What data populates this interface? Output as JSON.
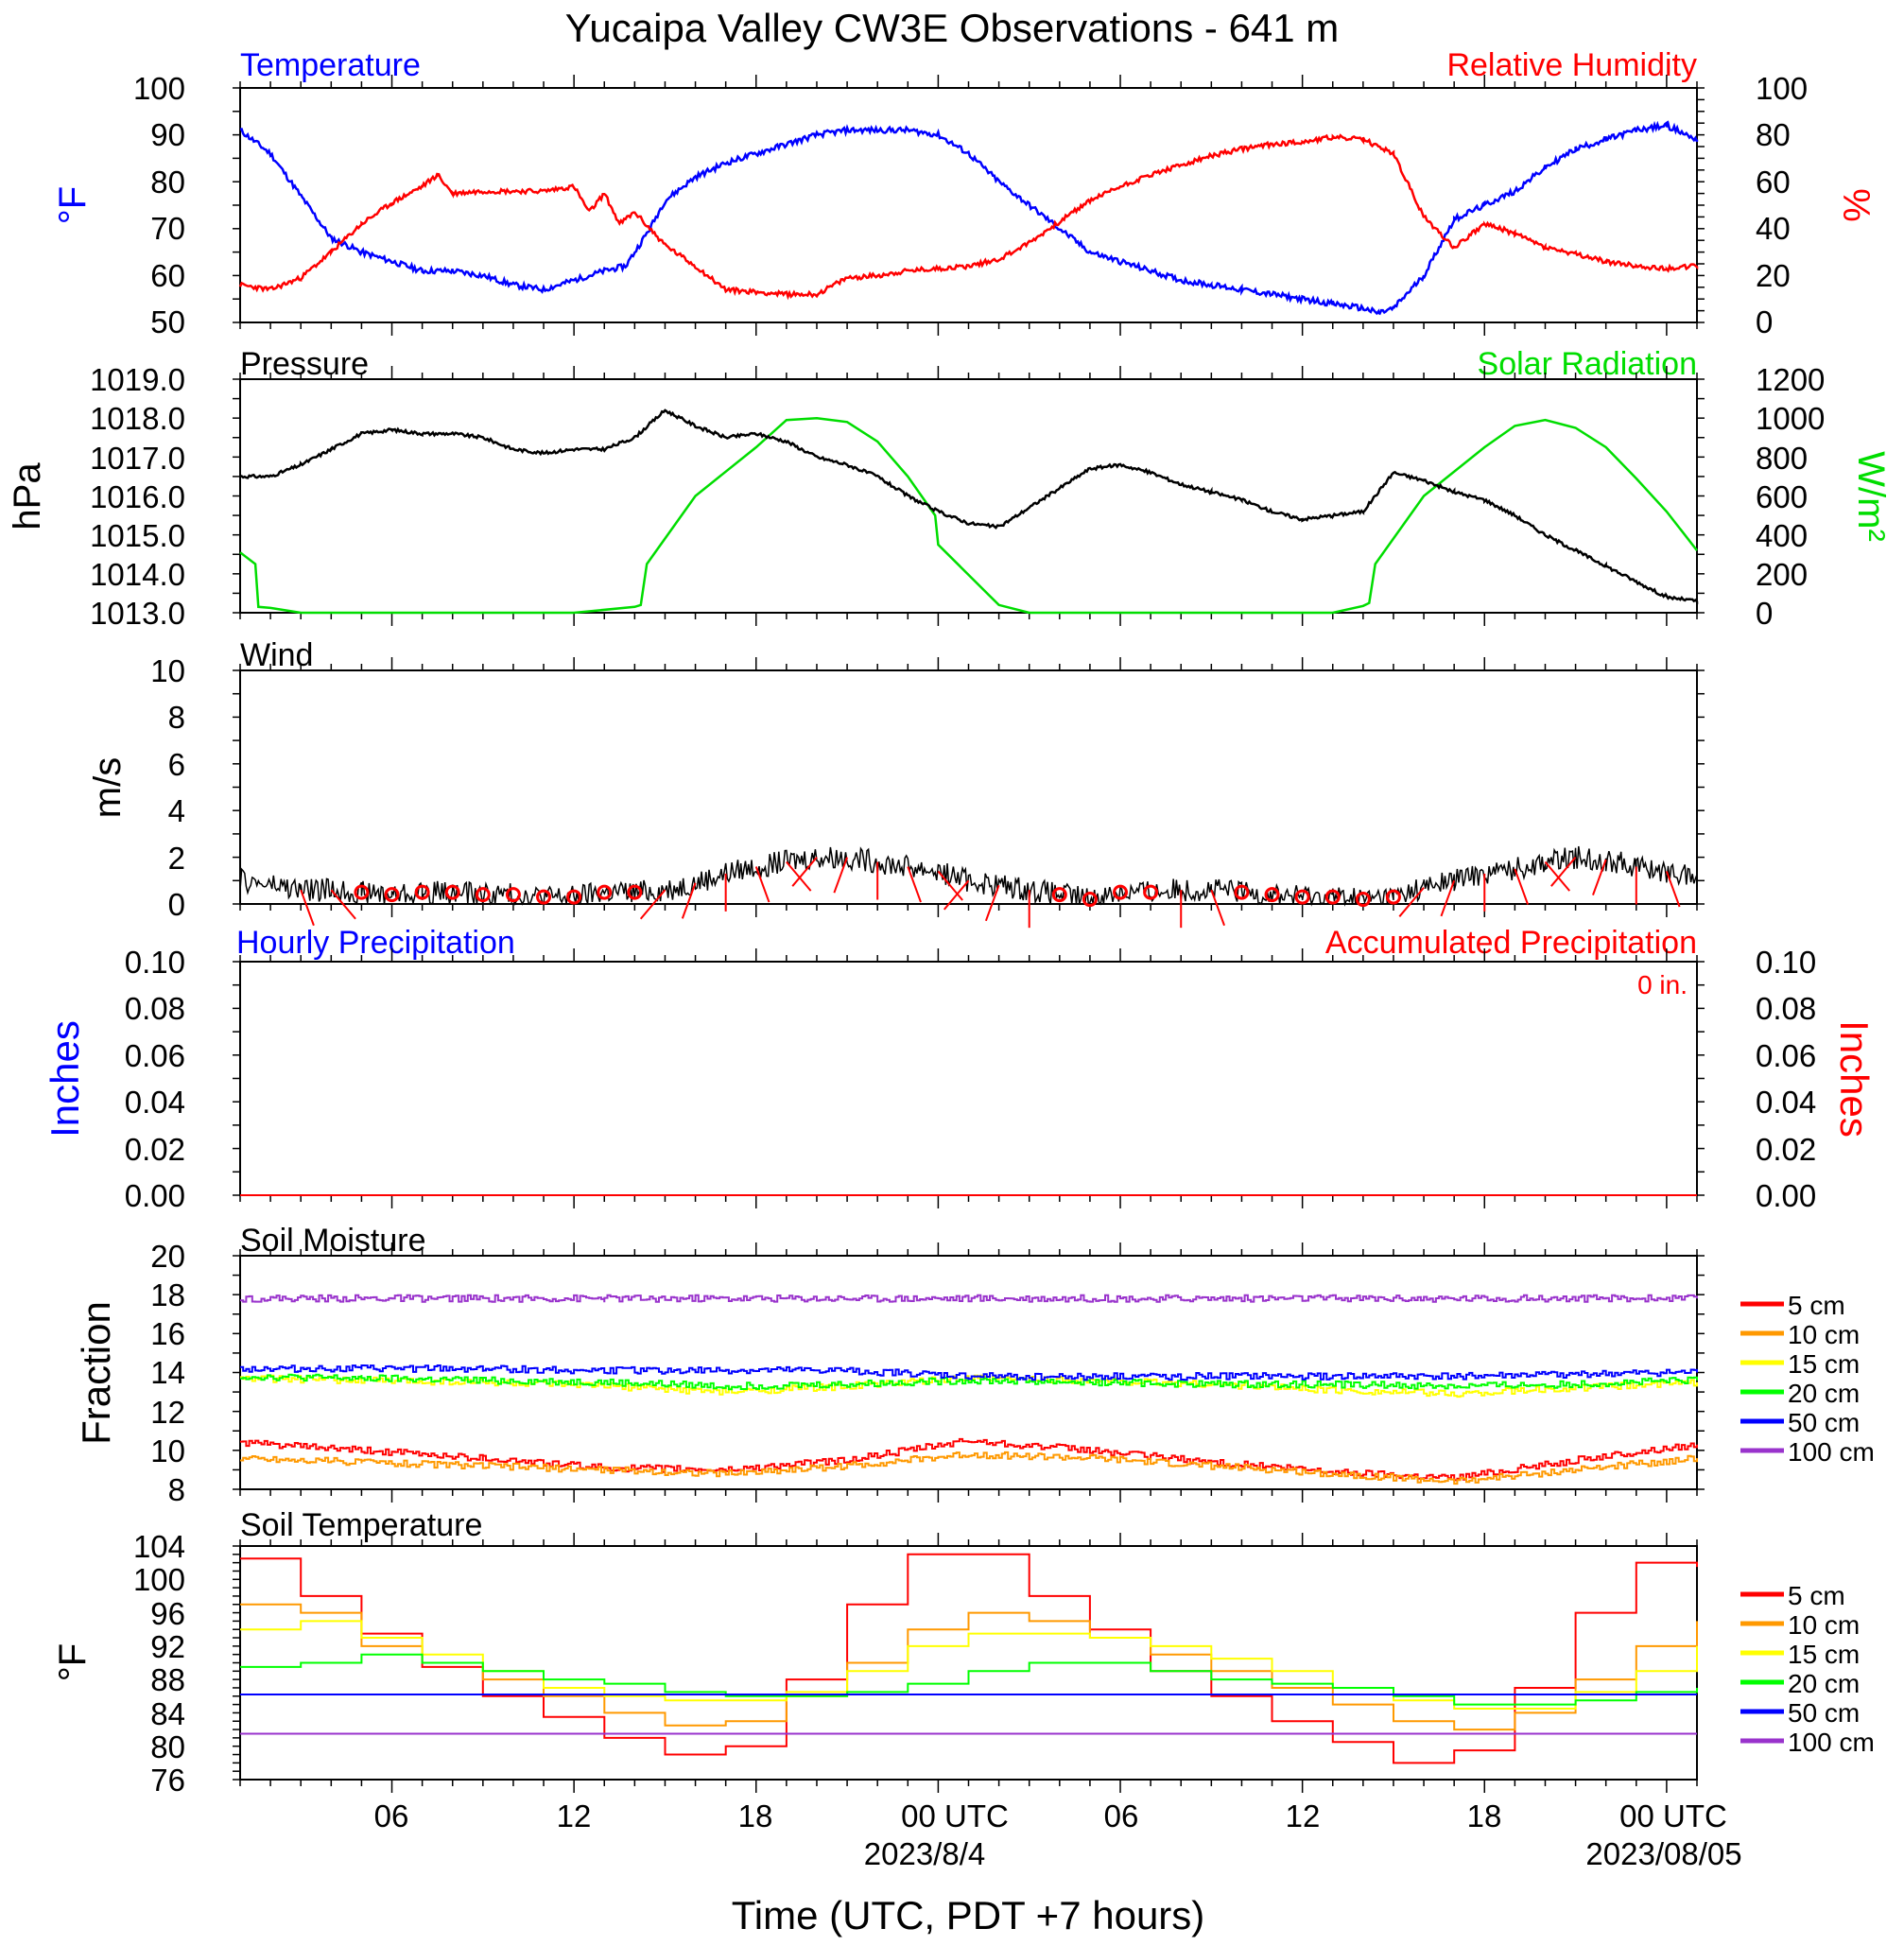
{
  "title": "Yucaipa Valley CW3E Observations - 641 m",
  "colors": {
    "temperature": "#0000ff",
    "humidity": "#ff0000",
    "pressure": "#000000",
    "solar": "#00dd00",
    "wind_barb": "#ff0000",
    "soil": {
      "5 cm": "#ff0000",
      "10 cm": "#ff9900",
      "15 cm": "#ffff00",
      "20 cm": "#00ff00",
      "50 cm": "#0000ff",
      "100 cm": "#9933cc"
    }
  },
  "time_axis": {
    "tick_labels": [
      "06",
      "12",
      "18",
      "00 UTC",
      "06",
      "12",
      "18",
      "00 UTC"
    ],
    "date_labels": [
      "2023/8/4",
      "2023/08/05"
    ],
    "xlabel": "Time (UTC, PDT +7 hours)",
    "range_hours": [
      1,
      49
    ]
  },
  "panels": {
    "temp_rh": {
      "left_title": "Temperature",
      "right_title": "Relative Humidity",
      "left_unit": "°F",
      "right_unit": "%",
      "left_ticks": [
        "100",
        "90",
        "80",
        "70",
        "60",
        "50"
      ],
      "right_ticks": [
        "100",
        "80",
        "60",
        "40",
        "20",
        "0"
      ]
    },
    "pressure_solar": {
      "left_title": "Pressure",
      "right_title": "Solar Radiation",
      "left_unit": "hPa",
      "right_unit": "W/m²",
      "left_ticks": [
        "1019.0",
        "1018.0",
        "1017.0",
        "1016.0",
        "1015.0",
        "1014.0",
        "1013.0"
      ],
      "right_ticks": [
        "1200",
        "1000",
        "800",
        "600",
        "400",
        "200",
        "0"
      ]
    },
    "wind": {
      "left_title": "Wind",
      "left_unit": "m/s",
      "left_ticks": [
        "10",
        "8",
        "6",
        "4",
        "2",
        "0"
      ]
    },
    "precip": {
      "left_title": "Hourly Precipitation",
      "right_title": "Accumulated Precipitation",
      "accum_total": "0 in.",
      "left_unit": "Inches",
      "right_unit": "Inches",
      "left_ticks": [
        "0.10",
        "0.08",
        "0.06",
        "0.04",
        "0.02",
        "0.00"
      ],
      "right_ticks": [
        "0.10",
        "0.08",
        "0.06",
        "0.04",
        "0.02",
        "0.00"
      ]
    },
    "soil_moisture": {
      "left_title": "Soil Moisture",
      "left_unit": "Fraction",
      "left_ticks": [
        "20",
        "18",
        "16",
        "14",
        "12",
        "10",
        "8"
      ],
      "legend": [
        "5 cm",
        "10 cm",
        "15 cm",
        "20 cm",
        "50 cm",
        "100 cm"
      ]
    },
    "soil_temp": {
      "left_title": "Soil Temperature",
      "left_unit": "°F",
      "left_ticks": [
        "104",
        "100",
        "96",
        "92",
        "88",
        "84",
        "80",
        "76"
      ],
      "legend": [
        "5 cm",
        "10 cm",
        "15 cm",
        "20 cm",
        "50 cm",
        "100 cm"
      ]
    }
  },
  "chart_data": [
    {
      "type": "line",
      "title": "Temperature",
      "ylabel": "°F",
      "ylim": [
        50,
        100
      ],
      "x_hours": [
        1,
        2,
        3,
        4,
        5,
        6,
        7,
        8,
        9,
        10,
        11,
        12,
        13,
        13.7,
        14.5,
        15,
        16,
        17,
        18,
        19,
        20,
        21,
        22,
        23,
        24,
        25,
        26,
        27,
        28,
        29,
        30,
        31,
        32,
        33,
        34,
        35,
        36,
        37,
        38,
        38.5,
        39,
        40,
        41,
        42,
        43,
        44,
        45,
        46,
        47,
        48,
        49
      ],
      "series": [
        {
          "name": "Temperature",
          "values": [
            91,
            86,
            77,
            68,
            65,
            63,
            61,
            61,
            60,
            58,
            57,
            59,
            61,
            62,
            70,
            76,
            81,
            84,
            86,
            88,
            90,
            91,
            91,
            91,
            90,
            86,
            80,
            75,
            70,
            65,
            63,
            61,
            59,
            58,
            57,
            56,
            55,
            54,
            53,
            52,
            53,
            60,
            72,
            75,
            78,
            83,
            87,
            89,
            91,
            92,
            89
          ]
        }
      ]
    },
    {
      "type": "line",
      "title": "Relative Humidity",
      "ylabel": "%",
      "ylim": [
        0,
        100
      ],
      "x_hours": [
        1,
        2,
        3,
        4,
        5,
        6,
        7,
        7.5,
        8,
        9,
        10,
        11,
        12,
        12.5,
        13,
        13.5,
        14,
        15,
        16,
        17,
        18,
        19,
        20,
        21,
        22,
        23,
        24,
        25,
        26,
        27,
        28,
        29,
        30,
        31,
        32,
        33,
        34,
        35,
        36,
        37,
        38,
        39,
        40,
        41,
        42,
        43,
        44,
        45,
        46,
        47,
        48,
        49
      ],
      "series": [
        {
          "name": "Relative Humidity",
          "values": [
            16,
            14,
            19,
            30,
            42,
            51,
            58,
            63,
            55,
            56,
            56,
            56,
            58,
            47,
            55,
            42,
            47,
            33,
            24,
            14,
            13,
            12,
            12,
            19,
            20,
            22,
            23,
            24,
            27,
            34,
            43,
            52,
            58,
            63,
            67,
            71,
            74,
            76,
            77,
            79,
            78,
            72,
            45,
            32,
            42,
            38,
            32,
            29,
            26,
            24,
            23,
            24
          ]
        }
      ]
    },
    {
      "type": "line",
      "title": "Pressure",
      "ylabel": "hPa",
      "ylim": [
        1013,
        1019
      ],
      "x_hours": [
        1,
        2,
        3,
        4,
        5,
        6,
        7,
        8,
        9,
        10,
        11,
        12,
        13,
        14,
        15,
        16,
        17,
        18,
        19,
        20,
        21,
        22,
        23,
        24,
        25,
        26,
        27,
        28,
        29,
        30,
        31,
        32,
        33,
        34,
        35,
        36,
        37,
        38,
        39,
        40,
        41,
        42,
        43,
        44,
        45,
        46,
        47,
        48,
        49
      ],
      "series": [
        {
          "name": "Pressure",
          "values": [
            1016.5,
            1016.5,
            1016.8,
            1017.2,
            1017.6,
            1017.7,
            1017.6,
            1017.6,
            1017.5,
            1017.2,
            1017.1,
            1017.2,
            1017.2,
            1017.5,
            1018.2,
            1017.8,
            1017.5,
            1017.6,
            1017.4,
            1017.0,
            1016.8,
            1016.5,
            1016.0,
            1015.6,
            1015.3,
            1015.2,
            1015.7,
            1016.2,
            1016.7,
            1016.8,
            1016.6,
            1016.3,
            1016.1,
            1015.9,
            1015.6,
            1015.4,
            1015.5,
            1015.6,
            1016.6,
            1016.4,
            1016.1,
            1015.9,
            1015.5,
            1015.0,
            1014.6,
            1014.2,
            1013.8,
            1013.4,
            1013.3
          ]
        }
      ]
    },
    {
      "type": "line",
      "title": "Solar Radiation",
      "ylabel": "W/m²",
      "ylim": [
        0,
        1200
      ],
      "x_hours": [
        1,
        1.5,
        1.6,
        2,
        3,
        12,
        14,
        14.2,
        14.4,
        16,
        18,
        19,
        20,
        21,
        22,
        23,
        23.9,
        24,
        26,
        27,
        37,
        38,
        38.2,
        38.4,
        40,
        42,
        43,
        44,
        45,
        46,
        47,
        48,
        49
      ],
      "series": [
        {
          "name": "Solar Radiation",
          "values": [
            310,
            250,
            30,
            25,
            0,
            0,
            30,
            40,
            250,
            600,
            850,
            990,
            1000,
            980,
            880,
            700,
            500,
            350,
            40,
            0,
            0,
            35,
            50,
            250,
            600,
            850,
            960,
            990,
            950,
            850,
            690,
            520,
            320
          ]
        }
      ]
    },
    {
      "type": "line",
      "title": "Wind",
      "ylabel": "m/s",
      "ylim": [
        0,
        10
      ],
      "x_hours": [
        1,
        2,
        3,
        4,
        5,
        6,
        7,
        8,
        9,
        10,
        11,
        12,
        13,
        14,
        15,
        16,
        17,
        18,
        19,
        20,
        21,
        22,
        23,
        24,
        25,
        26,
        27,
        28,
        29,
        30,
        31,
        32,
        33,
        34,
        35,
        36,
        37,
        38,
        39,
        40,
        41,
        42,
        43,
        44,
        45,
        46,
        47,
        48,
        49
      ],
      "series": [
        {
          "name": "Wind speed",
          "values": [
            1.0,
            0.8,
            0.6,
            0.6,
            0.5,
            0.4,
            0.5,
            0.5,
            0.4,
            0.4,
            0.3,
            0.3,
            0.5,
            0.5,
            0.6,
            0.9,
            1.3,
            1.6,
            1.8,
            2.0,
            2.0,
            1.8,
            1.6,
            1.4,
            1.0,
            0.8,
            0.6,
            0.4,
            0.2,
            0.5,
            0.5,
            0.6,
            0.6,
            0.5,
            0.4,
            0.3,
            0.3,
            0.2,
            0.3,
            0.7,
            1.0,
            1.3,
            1.5,
            1.8,
            2.0,
            1.9,
            1.6,
            1.4,
            1.1
          ]
        }
      ]
    },
    {
      "type": "line",
      "title": "Hourly Precipitation",
      "ylabel": "Inches",
      "ylim": [
        0,
        0.1
      ],
      "x_hours": [
        1,
        49
      ],
      "series": [
        {
          "name": "Hourly Precipitation",
          "values": [
            0,
            0
          ]
        },
        {
          "name": "Accumulated Precipitation",
          "values": [
            0,
            0
          ]
        }
      ]
    },
    {
      "type": "line",
      "title": "Soil Moisture",
      "ylabel": "Fraction",
      "ylim": [
        8,
        20
      ],
      "x_hours": [
        1,
        5,
        9,
        13,
        17,
        21,
        25,
        29,
        33,
        37,
        41,
        45,
        49
      ],
      "series": [
        {
          "name": "5 cm",
          "values": [
            10.4,
            10.0,
            9.6,
            9.1,
            9.0,
            9.5,
            10.5,
            10.0,
            9.4,
            8.9,
            8.6,
            9.5,
            10.3
          ]
        },
        {
          "name": "10 cm",
          "values": [
            9.6,
            9.4,
            9.2,
            9.0,
            8.8,
            9.2,
            9.8,
            9.6,
            9.2,
            8.8,
            8.4,
            9.0,
            9.6
          ]
        },
        {
          "name": "15 cm",
          "values": [
            13.7,
            13.6,
            13.5,
            13.3,
            13.0,
            13.3,
            13.7,
            13.6,
            13.4,
            13.1,
            12.9,
            13.2,
            13.5
          ]
        },
        {
          "name": "20 cm",
          "values": [
            13.8,
            13.7,
            13.6,
            13.5,
            13.3,
            13.4,
            13.6,
            13.5,
            13.4,
            13.4,
            13.3,
            13.4,
            13.6
          ]
        },
        {
          "name": "50 cm",
          "values": [
            14.2,
            14.2,
            14.2,
            14.1,
            14.1,
            14.1,
            13.8,
            13.8,
            13.8,
            13.8,
            13.8,
            13.9,
            14.0
          ]
        },
        {
          "name": "100 cm",
          "values": [
            17.8,
            17.8,
            17.8,
            17.8,
            17.8,
            17.8,
            17.8,
            17.8,
            17.8,
            17.8,
            17.8,
            17.8,
            17.8
          ]
        }
      ]
    },
    {
      "type": "line",
      "title": "Soil Temperature",
      "ylabel": "°F",
      "ylim": [
        76,
        104
      ],
      "x_hours": [
        1,
        3,
        5,
        7,
        9,
        11,
        13,
        15,
        17,
        19,
        21,
        23,
        25,
        27,
        29,
        31,
        33,
        35,
        37,
        39,
        41,
        43,
        45,
        47,
        49
      ],
      "series": [
        {
          "name": "5 cm",
          "values": [
            102.5,
            98,
            93.5,
            89.5,
            86,
            83.5,
            81,
            79,
            80,
            88,
            97,
            103,
            103,
            98,
            94,
            89,
            86,
            83,
            80.5,
            78,
            79.5,
            87,
            96,
            102,
            101.5
          ]
        },
        {
          "name": "10 cm",
          "values": [
            97,
            96,
            92,
            90,
            88,
            86,
            84,
            82.5,
            83,
            86,
            90,
            94,
            96,
            95,
            93,
            91,
            89,
            87,
            85,
            83,
            82,
            84,
            88,
            92,
            95
          ]
        },
        {
          "name": "15 cm",
          "values": [
            94,
            95,
            93,
            91,
            89,
            87,
            86,
            85.5,
            85.5,
            86.5,
            89,
            92,
            93.5,
            93.5,
            93,
            92,
            90.5,
            89,
            87,
            85.5,
            84.5,
            84.5,
            86.5,
            89,
            92
          ]
        },
        {
          "name": "20 cm",
          "values": [
            89.5,
            90,
            91,
            90,
            89,
            88,
            87.5,
            86.5,
            86,
            86,
            86.5,
            87.5,
            89,
            90,
            90,
            89,
            88,
            87.5,
            87,
            86,
            85,
            85,
            85.5,
            86.5,
            87
          ]
        },
        {
          "name": "50 cm",
          "values": [
            86.2,
            86.2,
            86.2,
            86.2,
            86.2,
            86.2,
            86.2,
            86.2,
            86.2,
            86.2,
            86.2,
            86.2,
            86.2,
            86.2,
            86.2,
            86.2,
            86.2,
            86.2,
            86.2,
            86.2,
            86.2,
            86.2,
            86.2,
            86.2,
            86.2
          ]
        },
        {
          "name": "100 cm",
          "values": [
            81.5,
            81.5,
            81.5,
            81.5,
            81.5,
            81.5,
            81.5,
            81.5,
            81.5,
            81.5,
            81.5,
            81.5,
            81.5,
            81.5,
            81.5,
            81.5,
            81.5,
            81.5,
            81.5,
            81.5,
            81.5,
            81.5,
            81.5,
            81.5,
            81.5
          ]
        }
      ]
    }
  ]
}
